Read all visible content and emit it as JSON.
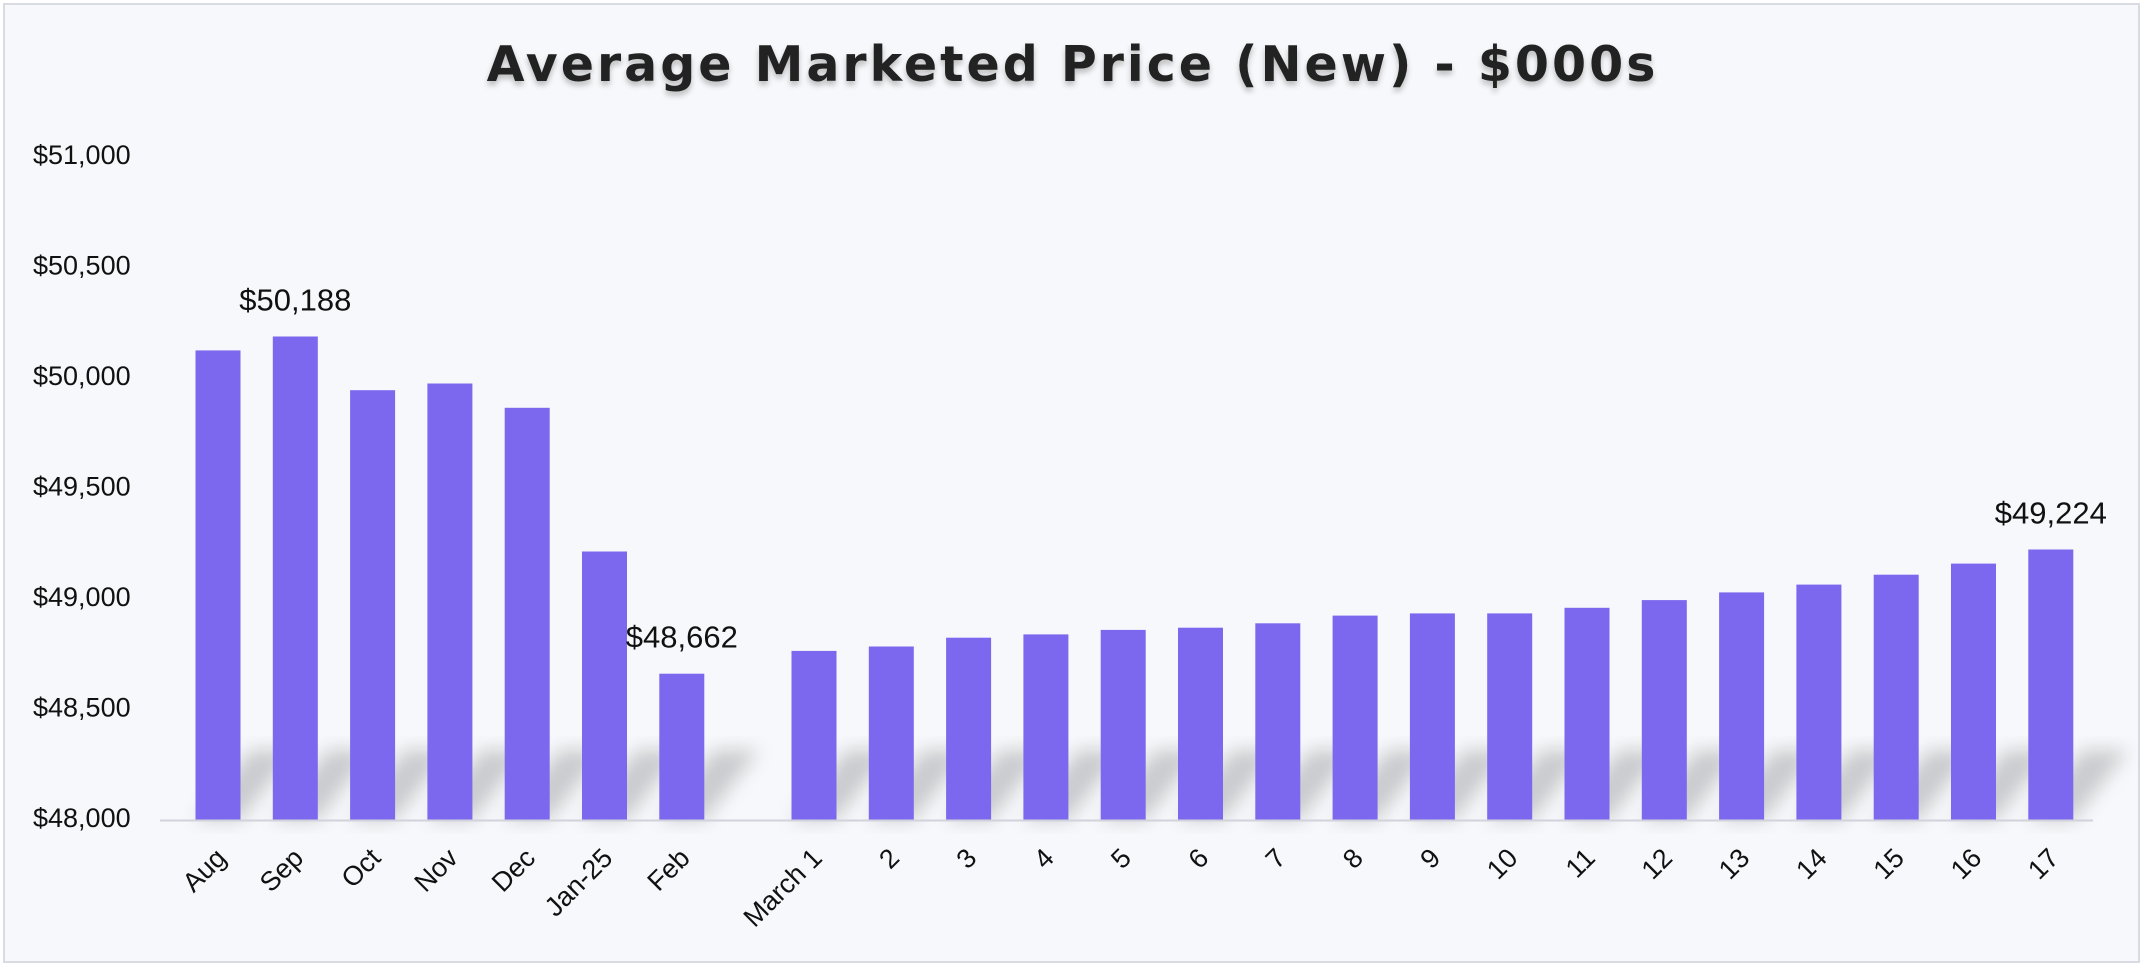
{
  "chart_data": {
    "type": "bar",
    "title": "Average Marketed Price (New) - $000s",
    "xlabel": "",
    "ylabel": "",
    "ylim": [
      48000,
      51000
    ],
    "yticks": [
      48000,
      48500,
      49000,
      49500,
      50000,
      50500,
      51000
    ],
    "ytick_labels": [
      "$48,000",
      "$48,500",
      "$49,000",
      "$49,500",
      "$50,000",
      "$50,500",
      "$51,000"
    ],
    "grid": false,
    "legend": "none",
    "bar_color": "#7b68ee",
    "groups": [
      {
        "categories": [
          "Aug",
          "Sep",
          "Oct",
          "Nov",
          "Dec",
          "Jan-25",
          "Feb"
        ],
        "values": [
          50125,
          50188,
          49945,
          49975,
          49865,
          49215,
          48662
        ]
      },
      {
        "categories": [
          "March 1",
          "2",
          "3",
          "4",
          "5",
          "6",
          "7",
          "8",
          "9",
          "10",
          "11",
          "12",
          "13",
          "14",
          "15",
          "16",
          "17"
        ],
        "values": [
          48765,
          48785,
          48825,
          48840,
          48860,
          48870,
          48890,
          48925,
          48935,
          48935,
          48960,
          48995,
          49030,
          49065,
          49110,
          49160,
          49224
        ]
      }
    ],
    "data_labels": [
      {
        "group": 0,
        "index": 1,
        "text": "$50,188"
      },
      {
        "group": 0,
        "index": 6,
        "text": "$48,662"
      },
      {
        "group": 1,
        "index": 16,
        "text": "$49,224"
      }
    ]
  }
}
